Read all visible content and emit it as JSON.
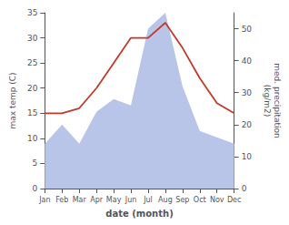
{
  "chart_data": {
    "type": "line",
    "xlabel": "date (month)",
    "ylabel": "max temp (C)",
    "y2label": "med. precipitation\n(kg/m2)",
    "categories": [
      "Jan",
      "Feb",
      "Mar",
      "Apr",
      "May",
      "Jun",
      "Jul",
      "Aug",
      "Sep",
      "Oct",
      "Nov",
      "Dec"
    ],
    "series": [
      {
        "type": "area",
        "axis": "y2",
        "color": "#b8c4e8",
        "values": [
          14,
          20,
          14,
          24,
          28,
          26,
          50,
          55,
          32,
          18,
          16,
          14
        ]
      },
      {
        "type": "line",
        "color": "#c0392b",
        "values": [
          15,
          15,
          16,
          20,
          25,
          30,
          30,
          33,
          28,
          22,
          17,
          15
        ]
      }
    ],
    "ylim": [
      0,
      35
    ],
    "yticks": [
      0,
      5,
      10,
      15,
      20,
      25,
      30,
      35
    ],
    "y2lim": [
      0,
      55
    ],
    "y2ticks": [
      0,
      10,
      20,
      30,
      40,
      50
    ],
    "grid": false
  }
}
